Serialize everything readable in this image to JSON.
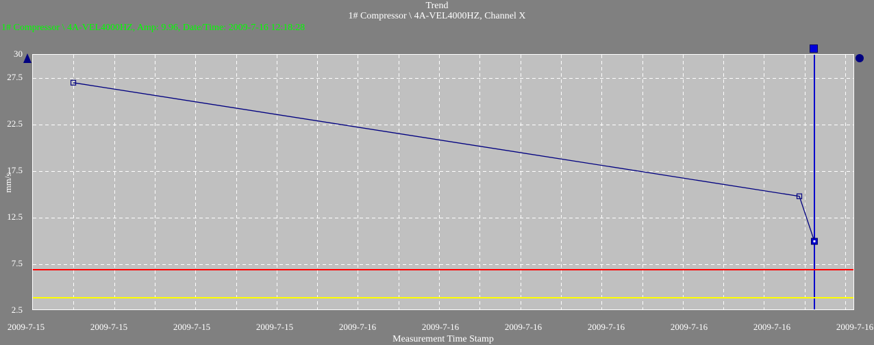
{
  "window": {
    "background": "#808080",
    "text_color": "#ffffff"
  },
  "header": {
    "title": "Trend",
    "subtitle": "1# Compressor \\ 4A-VEL4000HZ, Channel X",
    "readout": "1# Compressor \\ 4A-VEL4000HZ, Amp: 9.96, Date/Time: 2009-7-16 12:18:28",
    "readout_color": "#00ff00"
  },
  "chart_data": {
    "type": "line",
    "title": "Trend",
    "subtitle": "1# Compressor \\ 4A-VEL4000HZ, Channel X",
    "xlabel": "Measurement Time Stamp",
    "ylabel": "mm/s",
    "ylim": [
      2.5,
      30
    ],
    "plot_bg": "#c0c0c0",
    "grid": {
      "style": "dashed",
      "color": "#ffffff"
    },
    "legend": "none",
    "y_tick_labels": [
      "30",
      "27.5",
      "22.5",
      "17.5",
      "12.5",
      "7.5",
      "2.5"
    ],
    "y_tick_values": [
      30,
      27.5,
      22.5,
      17.5,
      12.5,
      7.5,
      2.5
    ],
    "y_gridline_values": [
      27.5,
      22.5,
      17.5,
      12.5,
      7.5
    ],
    "x_tick_labels": [
      "2009-7-15",
      "2009-7-15",
      "2009-7-15",
      "2009-7-15",
      "2009-7-16",
      "2009-7-16",
      "2009-7-16",
      "2009-7-16",
      "2009-7-16",
      "2009-7-16",
      "2009-7-16"
    ],
    "x_gridline_count": 20,
    "series": [
      {
        "name": "1# Compressor \\ 4A-VEL4000HZ, Channel X",
        "color": "#000080",
        "marker": "open-square",
        "points": [
          {
            "x_frac": 0.0492,
            "value": 27.0
          },
          {
            "x_frac": 0.9325,
            "value": 14.8
          },
          {
            "x_frac": 0.9508,
            "value": 9.96,
            "selected": true
          }
        ]
      }
    ],
    "thresholds": [
      {
        "name": "alarm-line",
        "color": "#ff0000",
        "value": 7.0
      },
      {
        "name": "warning-line",
        "color": "#ffff00",
        "value": 4.0
      }
    ],
    "cursor": {
      "x_frac": 0.9508,
      "amp": "9.96",
      "datetime": "2009-7-16 12:18:28",
      "line_color": "#0000cc",
      "handle_color": "#0000dd"
    },
    "decorations": {
      "y_axis_max_triangle_color": "#000080",
      "series_end_circle_color": "#000080"
    }
  }
}
